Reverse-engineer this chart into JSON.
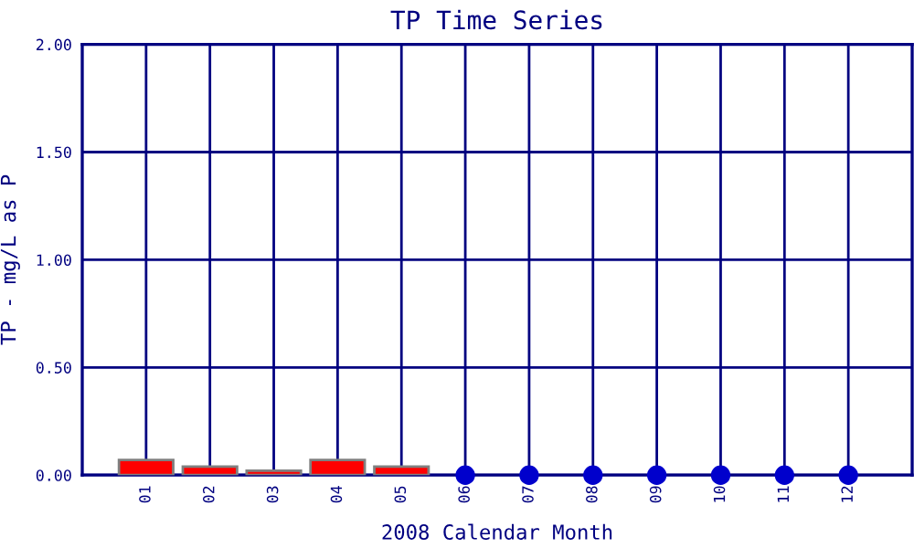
{
  "chart_data": {
    "type": "bar",
    "title": "TP Time Series",
    "xlabel": "2008 Calendar Month",
    "ylabel": "TP - mg/L as P",
    "categories": [
      "01",
      "02",
      "03",
      "04",
      "05",
      "06",
      "07",
      "08",
      "09",
      "10",
      "11",
      "12"
    ],
    "series": [
      {
        "color": "#ff0000",
        "values": [
          0.07,
          0.04,
          0.02,
          0.07,
          0.04,
          null,
          null,
          null,
          null,
          null,
          null,
          null
        ]
      },
      {
        "type": "scatter",
        "color": "#0000cc",
        "x": [
          "06",
          "07",
          "08",
          "09",
          "10",
          "11",
          "12"
        ],
        "values": [
          0,
          0,
          0,
          0,
          0,
          0,
          0
        ]
      }
    ],
    "ylim": [
      0,
      2
    ],
    "yticks": [
      {
        "value": 0,
        "label": "0.00"
      },
      {
        "value": 0.5,
        "label": "0.50"
      },
      {
        "value": 1,
        "label": "1.00"
      },
      {
        "value": 1.5,
        "label": "1.50"
      },
      {
        "value": 2,
        "label": "2.00"
      }
    ],
    "grid": true,
    "marker": "circle",
    "legend": false
  }
}
